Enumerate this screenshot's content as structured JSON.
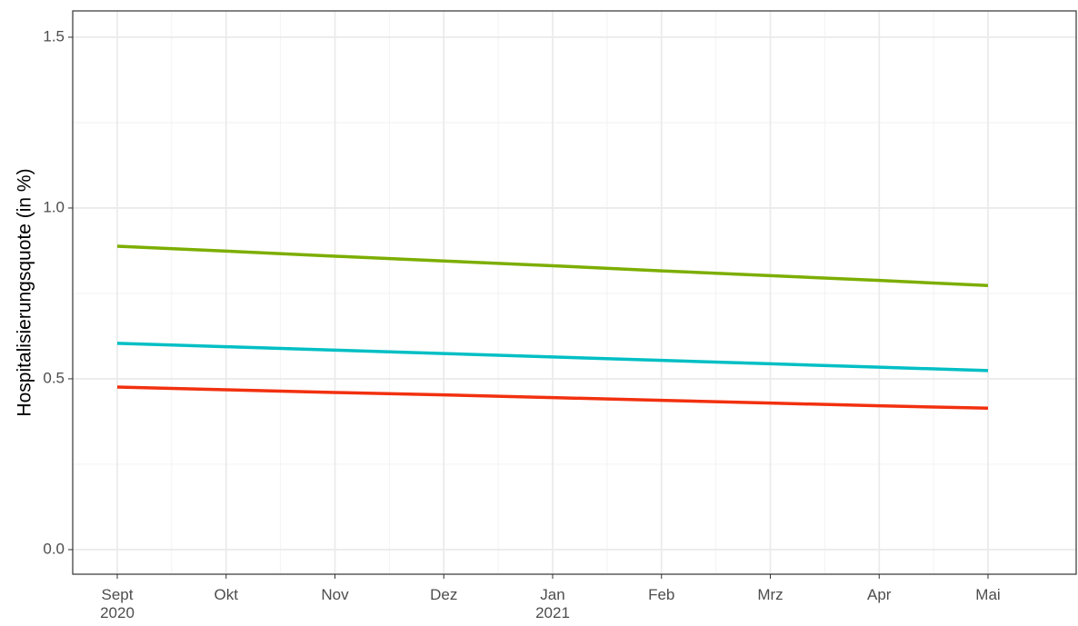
{
  "chart_data": {
    "type": "line",
    "y_label": "Hospitalisierungsquote (in %)",
    "categories": [
      "Sept\n2020",
      "Okt",
      "Nov",
      "Dez",
      "Jan\n2021",
      "Feb",
      "Mrz",
      "Apr",
      "Mai"
    ],
    "series": [
      {
        "color": "#7cae00",
        "values": [
          0.888,
          0.874,
          0.859,
          0.845,
          0.831,
          0.816,
          0.802,
          0.788,
          0.773
        ]
      },
      {
        "color": "#00bfc4",
        "values": [
          0.604,
          0.594,
          0.584,
          0.574,
          0.564,
          0.554,
          0.544,
          0.534,
          0.524
        ]
      },
      {
        "color": "#f2300f",
        "values": [
          0.476,
          0.468,
          0.46,
          0.453,
          0.445,
          0.437,
          0.429,
          0.421,
          0.414
        ]
      }
    ],
    "ylim": [
      -0.072,
      1.577
    ],
    "yticks": [
      {
        "value": 0,
        "label": "0.0"
      },
      0.5,
      {
        "value": 1,
        "label": "1.0"
      },
      1.5
    ],
    "grid": true
  }
}
